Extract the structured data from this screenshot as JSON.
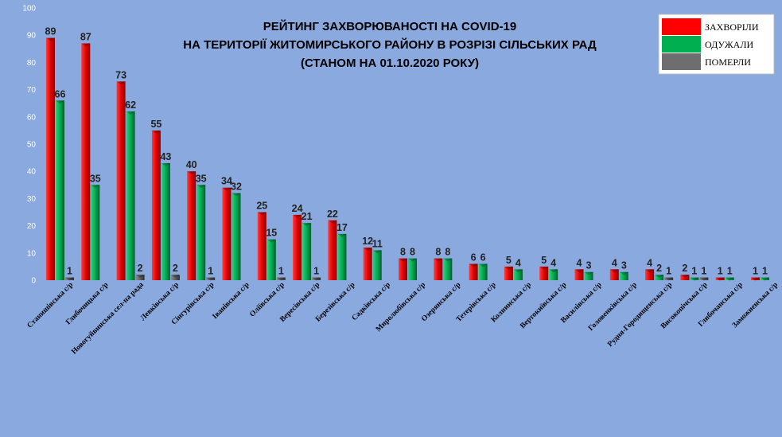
{
  "chart_data": {
    "type": "bar",
    "title_lines": [
      "РЕЙТИНГ ЗАХВОРЮВАНОСТІ НА COVID-19",
      "НА ТЕРИТОРІЇ ЖИТОМИРСЬКОГО РАЙОНУ В РОЗРІЗІ СІЛЬСЬКИХ РАД",
      "(СТАНОМ НА 01.10.2020 РОКУ)"
    ],
    "categories": [
      "Станишівська с/р",
      "Глибочицька с/р",
      "Новогуйвинська сел-на рада",
      "Левківська с/р",
      "Сінгурівська с/р",
      "Іванівська с/р",
      "Оліївська с/р",
      "Вересівська с/р",
      "Березівська с/р",
      "Садківська с/р",
      "Миролюбівська с/р",
      "Озерянська с/р",
      "Тетерівська с/р",
      "Колнинська с/р",
      "Вертокиївська с/р",
      "Василівська с/р",
      "Головенківська с/р",
      "Рудня-Городищенська с/р",
      "Високопічська с/р",
      "Глибочанська с/р",
      "Заможненська с/р"
    ],
    "series": [
      {
        "name": "ЗАХВОРІЛИ",
        "color": "#ff0000",
        "values": [
          89,
          87,
          73,
          55,
          40,
          34,
          25,
          24,
          22,
          12,
          8,
          8,
          6,
          5,
          5,
          4,
          4,
          4,
          2,
          1,
          1
        ]
      },
      {
        "name": "ОДУЖАЛИ",
        "color": "#00b050",
        "values": [
          66,
          35,
          62,
          43,
          35,
          32,
          15,
          21,
          17,
          11,
          8,
          8,
          6,
          4,
          4,
          3,
          3,
          2,
          1,
          1,
          1
        ]
      },
      {
        "name": "ПОМЕРЛИ",
        "color": "#6e6e6e",
        "values": [
          1,
          0,
          2,
          2,
          1,
          0,
          1,
          1,
          0,
          0,
          0,
          0,
          0,
          0,
          0,
          0,
          0,
          1,
          1,
          0,
          0
        ]
      }
    ],
    "ylim": [
      0,
      100
    ],
    "yticks": [
      0,
      10,
      20,
      30,
      40,
      50,
      60,
      70,
      80,
      90,
      100
    ],
    "grid": false,
    "legend_position": "top-right"
  }
}
